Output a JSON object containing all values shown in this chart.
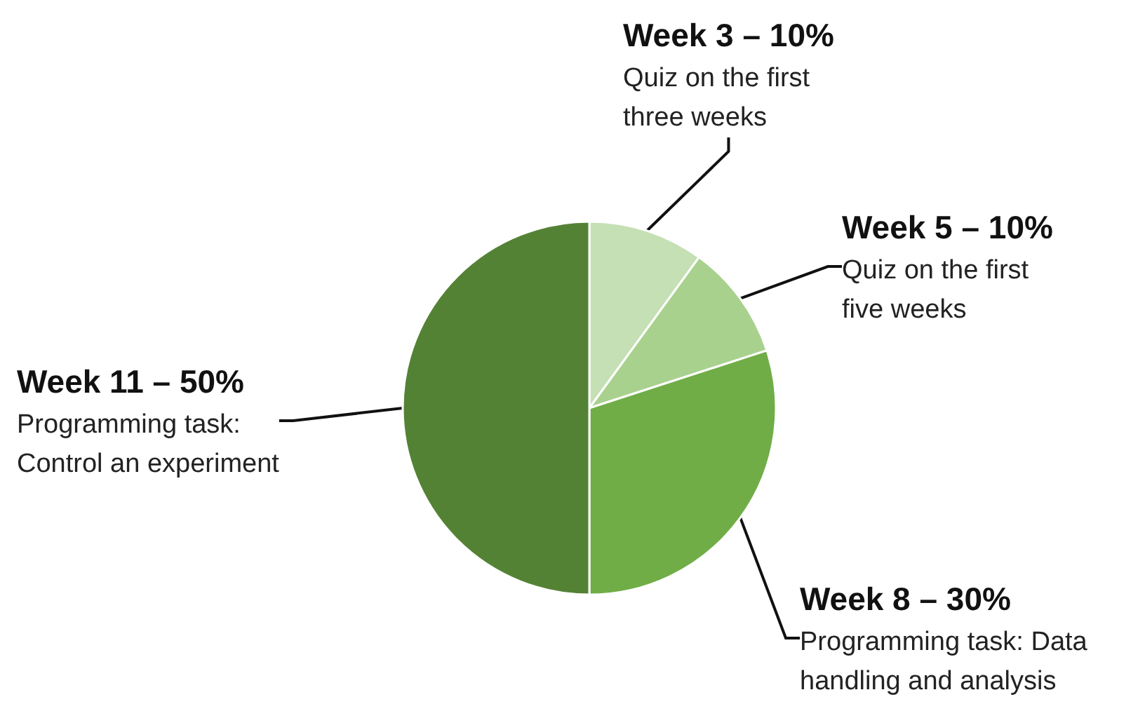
{
  "chart_data": {
    "type": "pie",
    "categories": [
      "Week 3 – 10%\nQuiz on the first\nthree weeks",
      "Week 5 – 10%\nQuiz on the first\nfive weeks",
      "Week 8 – 30%\nProgramming task: Data\nhandling and analysis",
      "Week 11 – 50%\nProgramming task:\nControl an experiment"
    ],
    "values": [
      10,
      10,
      30,
      50
    ],
    "colors": [
      "#c5e0b4",
      "#a9d18e",
      "#70ad47",
      "#548235"
    ],
    "legend": false
  }
}
